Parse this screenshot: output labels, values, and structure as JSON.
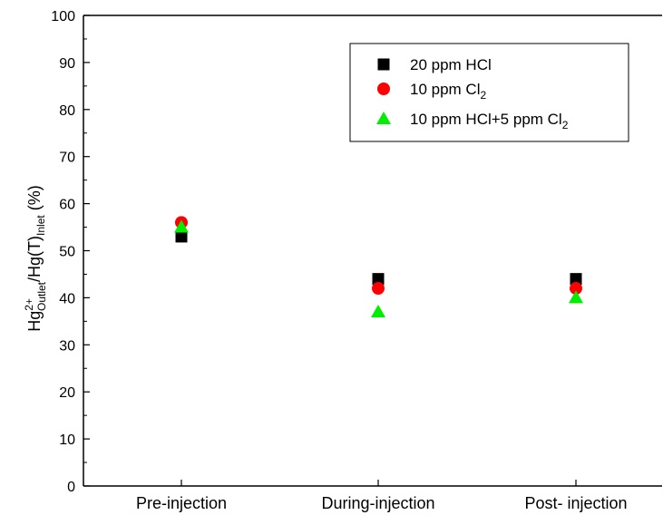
{
  "chart_data": {
    "type": "scatter",
    "categories": [
      "Pre-injection",
      "During-injection",
      "Post- injection"
    ],
    "ylim": [
      0,
      100
    ],
    "yticks": [
      0,
      10,
      20,
      30,
      40,
      50,
      60,
      70,
      80,
      90,
      100
    ],
    "ylabel": {
      "base1": "Hg",
      "sup1": "2+",
      "sub1": "Outlet",
      "mid": "/Hg(T)",
      "sub2": "Inlet",
      "unit": " (%)"
    },
    "grid": false,
    "legend_position": "top-right",
    "series": [
      {
        "name": "20 ppm HCl",
        "legend_base": "20 ppm HCl",
        "legend_sub": "",
        "marker": "square",
        "color": "#000000",
        "values": [
          53,
          44,
          44
        ]
      },
      {
        "name": "10 ppm Cl2",
        "legend_base": "10 ppm Cl",
        "legend_sub": "2",
        "marker": "circle",
        "color": "#ff0000",
        "values": [
          56,
          42,
          42
        ]
      },
      {
        "name": "10 ppm HCl+5 ppm Cl2",
        "legend_base": "10 ppm HCl+5 ppm Cl",
        "legend_sub": "2",
        "marker": "triangle",
        "color": "#00ee00",
        "values": [
          55,
          37,
          40
        ]
      }
    ]
  }
}
